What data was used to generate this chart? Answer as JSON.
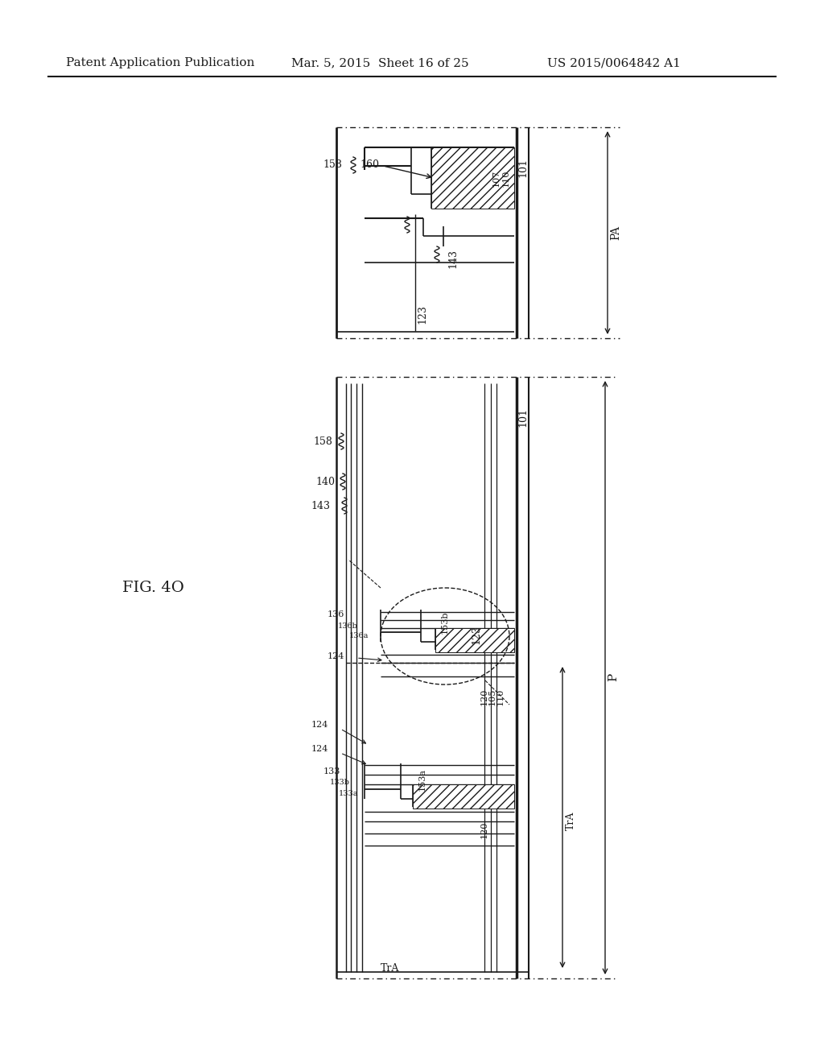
{
  "title_left": "Patent Application Publication",
  "title_mid": "Mar. 5, 2015  Sheet 16 of 25",
  "title_right": "US 2015/0064842 A1",
  "fig_label": "FIG. 4O",
  "bg_color": "#ffffff",
  "line_color": "#1a1a1a"
}
